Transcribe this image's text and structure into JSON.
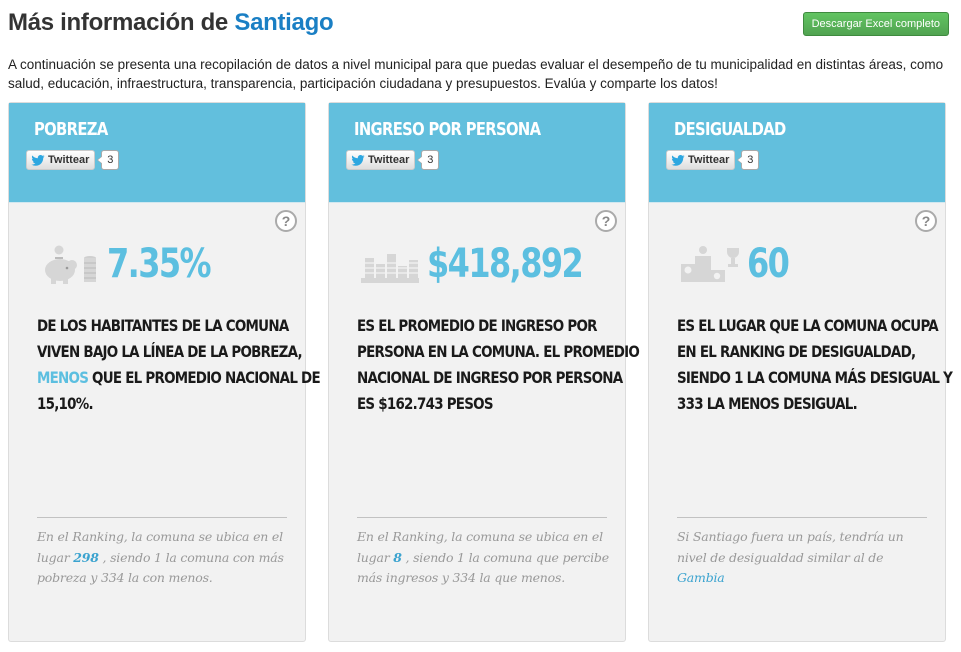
{
  "header": {
    "title_prefix": "Más información de",
    "city": "Santiago",
    "excel_button": "Descargar Excel completo"
  },
  "intro": "A continuación se presenta una recopilación de datos a nivel municipal para que puedas evaluar el desempeño de tu municipalidad en distintas áreas, como salud, educación, infraestructura, transparencia, participación ciudadana y presupuestos. Evalúa y comparte los datos!",
  "cards": [
    {
      "title": "POBREZA",
      "tweet_label": "Twittear",
      "tweet_count": "3",
      "help": "?",
      "icon": "piggy-bank-coins-icon",
      "value": "7.35%",
      "desc_l1": "DE LOS HABITANTES DE LA COMUNA",
      "desc_l2": "VIVEN BAJO LA LÍNEA DE LA POBREZA,",
      "desc_l3_hl": "MENOS",
      "desc_l3": " QUE EL PROMEDIO NACIONAL DE",
      "desc_l4": "15,10%.",
      "foot_a": "En el Ranking, la comuna se ubica en el lugar ",
      "foot_hl": "298",
      "foot_b": " , siendo 1 la comuna con más pobreza y 334 la con menos."
    },
    {
      "title": "INGRESO POR PERSONA",
      "tweet_label": "Twittear",
      "tweet_count": "3",
      "help": "?",
      "icon": "coin-stacks-icon",
      "value": "$418,892",
      "desc_l1": "ES EL PROMEDIO DE INGRESO POR",
      "desc_l2": "PERSONA EN LA COMUNA. EL PROMEDIO",
      "desc_l3": "NACIONAL DE INGRESO POR PERSONA",
      "desc_l4": "ES $162.743 PESOS",
      "foot_a": "En el Ranking, la comuna se ubica en el lugar ",
      "foot_hl": "8",
      "foot_b": " , siendo 1 la comuna que percibe más ingresos y 334 la que menos."
    },
    {
      "title": "DESIGUALDAD",
      "tweet_label": "Twittear",
      "tweet_count": "3",
      "help": "?",
      "icon": "podium-trophy-icon",
      "value": "60",
      "desc_l1": "ES EL LUGAR QUE LA COMUNA OCUPA",
      "desc_l2": "EN EL RANKING DE DESIGUALDAD,",
      "desc_l3": "SIENDO 1 LA COMUNA MÁS DESIGUAL Y",
      "desc_l4": "333 LA MENOS DESIGUAL.",
      "foot_a": "Si Santiago fuera un país, tendría un nivel de desigualdad similar al de ",
      "foot_hl": "Gambia",
      "foot_b": ""
    }
  ],
  "colors": {
    "accent_blue": "#62bfdd",
    "value_blue": "#5cbfe0",
    "title_blue": "#1a7fc4",
    "button_green": "#51a351"
  }
}
